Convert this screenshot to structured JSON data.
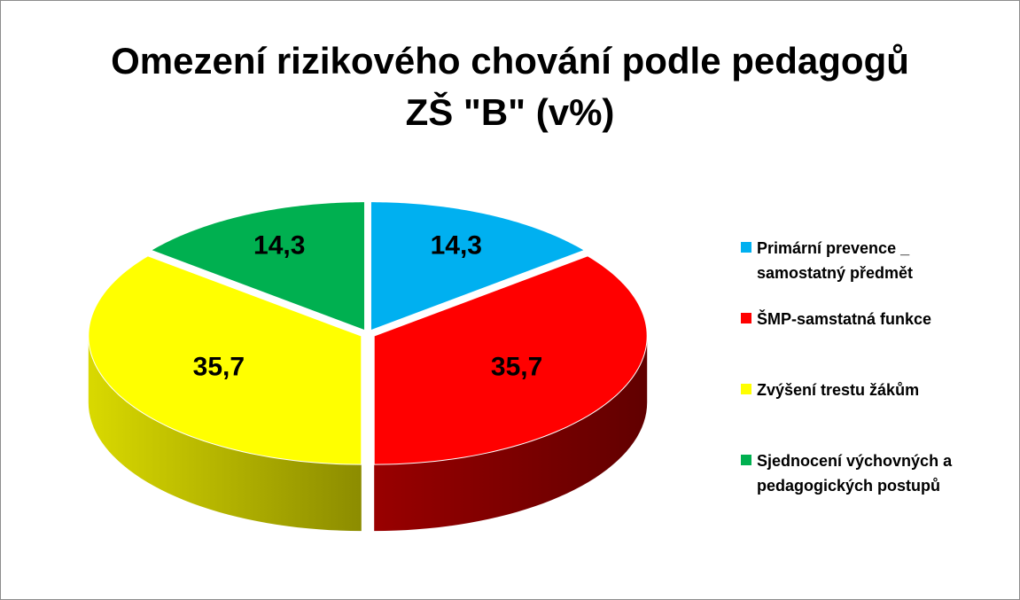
{
  "chart_data": {
    "type": "pie",
    "title": "Omezení rizikového chování podle pedagogů\nZŠ \"B\" (v%)",
    "series": [
      {
        "name": "Primární prevence _ samostatný předmět",
        "color": "#00b0f0"
      },
      {
        "name": "ŠMP-samstatná funkce",
        "color": "#ff0000"
      },
      {
        "name": "Zvýšení trestu žákům",
        "color": "#ffff00"
      },
      {
        "name": "Sjednocení výchovných a pedagogických postupů",
        "color": "#00b050"
      }
    ],
    "values": [
      14.3,
      35.7,
      35.7,
      14.3
    ],
    "value_labels": [
      "14,3",
      "35,7",
      "35,7",
      "14,3"
    ],
    "legend": "right"
  }
}
